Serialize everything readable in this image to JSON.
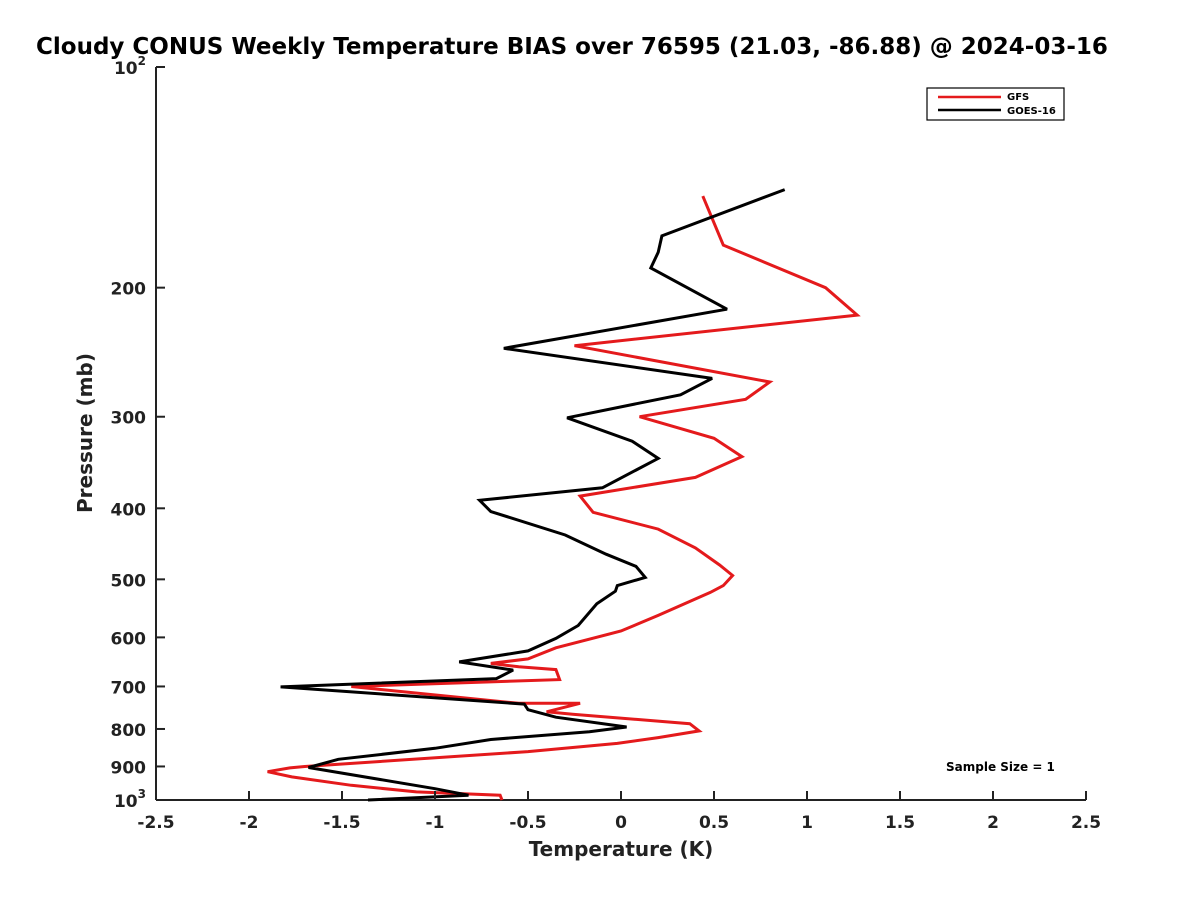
{
  "chart_data": {
    "type": "line",
    "title": "Cloudy CONUS Weekly Temperature BIAS over 76595 (21.03, -86.88) @ 2024-03-16",
    "xlabel": "Temperature (K)",
    "ylabel": "Pressure (mb)",
    "xlim": [
      -2.5,
      2.5
    ],
    "ylim": [
      100,
      1000
    ],
    "yscale": "log",
    "y_reversed": true,
    "grid": false,
    "legend_position": "top-right",
    "x_ticks": [
      -2.5,
      -2,
      -1.5,
      -1,
      -0.5,
      0,
      0.5,
      1,
      1.5,
      2,
      2.5
    ],
    "x_tick_labels": [
      "-2.5",
      "-2",
      "-1.5",
      "-1",
      "-0.5",
      "0",
      "0.5",
      "1",
      "1.5",
      "2",
      "2.5"
    ],
    "y_ticks": [
      100,
      200,
      300,
      400,
      500,
      600,
      700,
      800,
      900,
      1000
    ],
    "y_tick_labels": [
      {
        "base": "10",
        "sup": "2"
      },
      {
        "base": "200",
        "sup": ""
      },
      {
        "base": "300",
        "sup": ""
      },
      {
        "base": "400",
        "sup": ""
      },
      {
        "base": "500",
        "sup": ""
      },
      {
        "base": "600",
        "sup": ""
      },
      {
        "base": "700",
        "sup": ""
      },
      {
        "base": "800",
        "sup": ""
      },
      {
        "base": "900",
        "sup": ""
      },
      {
        "base": "10",
        "sup": "3"
      }
    ],
    "annotation": "Sample Size = 1",
    "series": [
      {
        "name": "GFS",
        "color": "#e41a1c",
        "points": [
          [
            0.44,
            150
          ],
          [
            0.55,
            175
          ],
          [
            1.1,
            200
          ],
          [
            1.27,
            218
          ],
          [
            -0.25,
            240
          ],
          [
            0.8,
            269
          ],
          [
            0.67,
            284
          ],
          [
            0.1,
            300
          ],
          [
            0.5,
            321
          ],
          [
            0.65,
            340
          ],
          [
            0.4,
            363
          ],
          [
            -0.22,
            385
          ],
          [
            -0.15,
            405
          ],
          [
            0.2,
            427
          ],
          [
            0.4,
            453
          ],
          [
            0.53,
            478
          ],
          [
            0.6,
            494
          ],
          [
            0.55,
            510
          ],
          [
            0.48,
            521
          ],
          [
            0.2,
            560
          ],
          [
            0.0,
            588
          ],
          [
            -0.35,
            620
          ],
          [
            -0.5,
            642
          ],
          [
            -0.7,
            651
          ],
          [
            -0.55,
            658
          ],
          [
            -0.35,
            664
          ],
          [
            -0.33,
            685
          ],
          [
            -1.45,
            700
          ],
          [
            -0.55,
            738
          ],
          [
            -0.22,
            738
          ],
          [
            -0.4,
            758
          ],
          [
            -0.26,
            764
          ],
          [
            0.37,
            787
          ],
          [
            0.42,
            805
          ],
          [
            0.2,
            822
          ],
          [
            -0.02,
            837
          ],
          [
            -0.5,
            859
          ],
          [
            -1.7,
            900
          ],
          [
            -1.78,
            904
          ],
          [
            -1.9,
            915
          ],
          [
            -1.77,
            930
          ],
          [
            -1.45,
            955
          ],
          [
            -1.1,
            975
          ],
          [
            -0.65,
            985
          ],
          [
            -0.64,
            1000
          ]
        ]
      },
      {
        "name": "GOES-16",
        "color": "#000000",
        "points": [
          [
            0.88,
            147
          ],
          [
            0.22,
            170
          ],
          [
            0.2,
            179
          ],
          [
            0.16,
            188
          ],
          [
            0.57,
            214
          ],
          [
            -0.63,
            242
          ],
          [
            0.49,
            266
          ],
          [
            0.32,
            280
          ],
          [
            -0.29,
            301
          ],
          [
            0.06,
            324
          ],
          [
            0.2,
            342
          ],
          [
            -0.1,
            375
          ],
          [
            -0.76,
            390
          ],
          [
            -0.7,
            404
          ],
          [
            -0.3,
            435
          ],
          [
            -0.08,
            462
          ],
          [
            0.08,
            480
          ],
          [
            0.13,
            497
          ],
          [
            -0.02,
            510
          ],
          [
            -0.03,
            519
          ],
          [
            -0.13,
            540
          ],
          [
            -0.23,
            578
          ],
          [
            -0.35,
            602
          ],
          [
            -0.5,
            626
          ],
          [
            -0.87,
            648
          ],
          [
            -0.58,
            665
          ],
          [
            -0.67,
            683
          ],
          [
            -1.83,
            701
          ],
          [
            -0.52,
            740
          ],
          [
            -0.5,
            753
          ],
          [
            -0.35,
            771
          ],
          [
            0.03,
            795
          ],
          [
            -0.17,
            807
          ],
          [
            -0.7,
            827
          ],
          [
            -1.0,
            850
          ],
          [
            -1.52,
            880
          ],
          [
            -1.68,
            903
          ],
          [
            -1.0,
            965
          ],
          [
            -0.82,
            985
          ],
          [
            -1.36,
            1000
          ]
        ]
      }
    ]
  }
}
